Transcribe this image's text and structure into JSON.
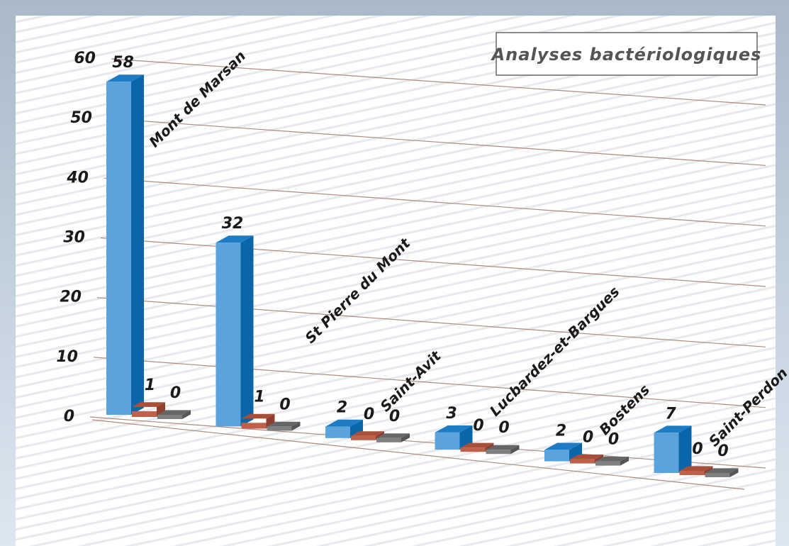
{
  "chart_data": {
    "type": "bar3d",
    "title": "Analyses bactériologiques",
    "categories": [
      "Mont de Marsan",
      "St Pierre du Mont",
      "Saint-Avit",
      "Lucbardez-et-Bargues",
      "Bostens",
      "Saint-Perdon"
    ],
    "series": [
      {
        "color": "#5ba3dc",
        "values": [
          58,
          32,
          2,
          3,
          2,
          7
        ]
      },
      {
        "color": "#c0604a",
        "values": [
          1,
          1,
          0,
          0,
          0,
          0
        ]
      },
      {
        "color": "#7f7f7f",
        "values": [
          0,
          0,
          0,
          0,
          0,
          0
        ]
      }
    ],
    "ylim": [
      0,
      60
    ],
    "yticks": [
      0,
      10,
      20,
      30,
      40,
      50,
      60
    ],
    "grid": true
  }
}
